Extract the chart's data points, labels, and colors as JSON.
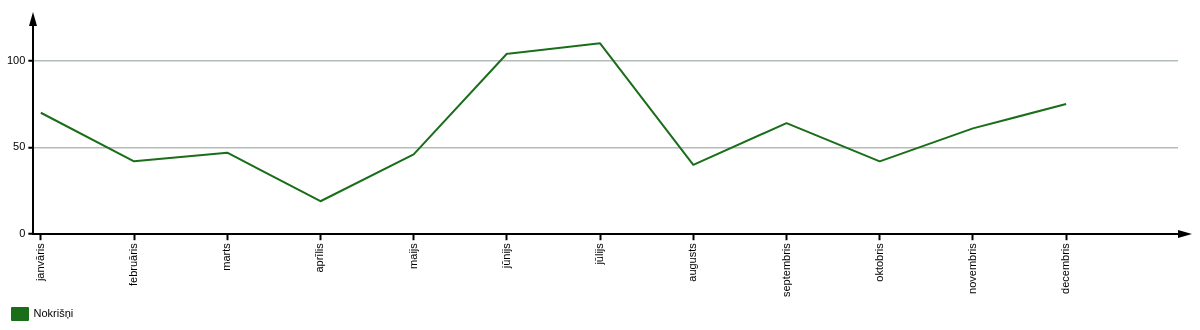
{
  "chart_data": {
    "type": "line",
    "categories": [
      "janvāris",
      "februāris",
      "marts",
      "aprīlis",
      "maijs",
      "jūnijs",
      "jūlijs",
      "augusts",
      "septembris",
      "oktobris",
      "novembris",
      "decembris"
    ],
    "series": [
      {
        "name": "Nokrišņi",
        "color": "#1a6e1a",
        "values": [
          70,
          42,
          47,
          19,
          46,
          104,
          110,
          40,
          64,
          42,
          61,
          75
        ]
      }
    ],
    "ylim": [
      0,
      120
    ],
    "yticks": [
      0,
      50,
      100
    ],
    "grid": "y",
    "legend": "bottom left",
    "marker": "none",
    "line_style": "solid"
  }
}
